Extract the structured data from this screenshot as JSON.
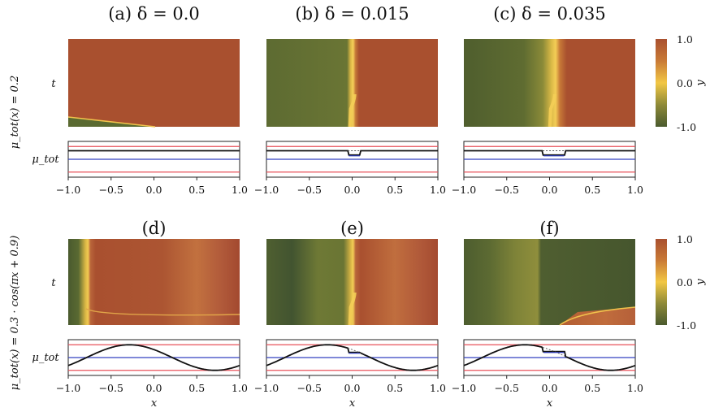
{
  "figure": {
    "row_labels": [
      "μ_tot(x) = 0.2",
      "μ_tot(x) = 0.3 · cos(πx + 0.9)"
    ],
    "heatmap_ylabel": "t",
    "mu_ylabel": "μ_tot",
    "xlabel": "x",
    "colorbar_label": "y",
    "colorbar_ticks": [
      "1.0",
      "0.0",
      "-1.0"
    ],
    "xticks": [
      "−1.0",
      "−0.5",
      "0.0",
      "0.5",
      "1.0"
    ]
  },
  "colors": {
    "high": "#A9502F",
    "mid": "#F2C744",
    "low": "#4A5A2E",
    "red_line": "#E8505A",
    "blue_line": "#3340C0",
    "mu_line": "#111111"
  },
  "chart_data": [
    {
      "type": "heatmap",
      "panel": "a",
      "title": "(a)   δ = 0.0",
      "row": 0,
      "col": 0,
      "x_range": [
        -1,
        1
      ],
      "delta": 0.0,
      "mu_tot": "0.2"
    },
    {
      "type": "heatmap",
      "panel": "b",
      "title": "(b)   δ = 0.015",
      "row": 0,
      "col": 1,
      "x_range": [
        -1,
        1
      ],
      "delta": 0.015,
      "mu_tot": "0.2"
    },
    {
      "type": "heatmap",
      "panel": "c",
      "title": "(c)   δ = 0.035",
      "row": 0,
      "col": 2,
      "x_range": [
        -1,
        1
      ],
      "delta": 0.035,
      "mu_tot": "0.2"
    },
    {
      "type": "heatmap",
      "panel": "d",
      "title": "(d)",
      "row": 1,
      "col": 0,
      "x_range": [
        -1,
        1
      ],
      "delta": 0.0,
      "mu_tot": "0.3·cos(πx+0.9)"
    },
    {
      "type": "heatmap",
      "panel": "e",
      "title": "(e)",
      "row": 1,
      "col": 1,
      "x_range": [
        -1,
        1
      ],
      "delta": 0.015,
      "mu_tot": "0.3·cos(πx+0.9)"
    },
    {
      "type": "heatmap",
      "panel": "f",
      "title": "(f)",
      "row": 1,
      "col": 2,
      "x_range": [
        -1,
        1
      ],
      "delta": 0.035,
      "mu_tot": "0.3·cos(πx+0.9)"
    }
  ]
}
